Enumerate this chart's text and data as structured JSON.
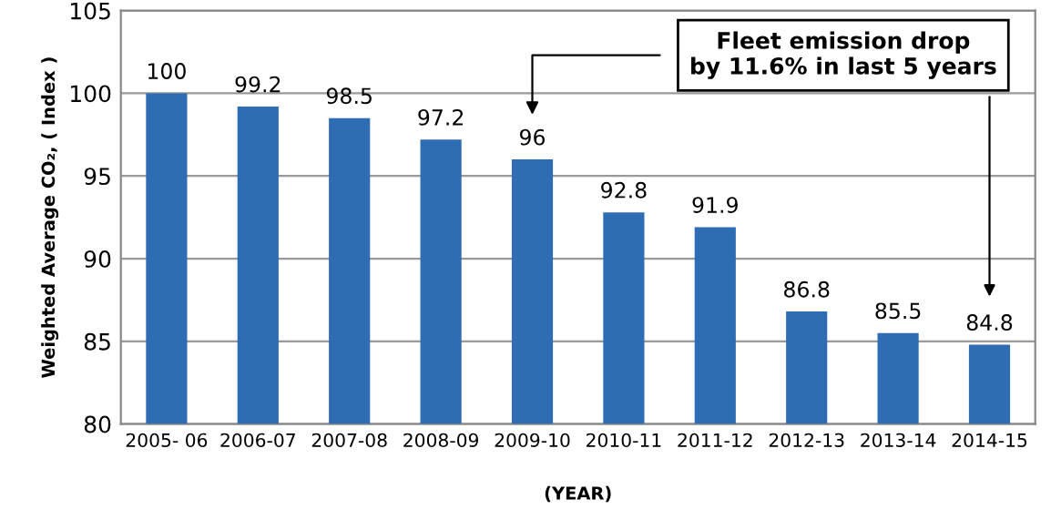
{
  "chart_data": {
    "type": "bar",
    "xlabel": "(YEAR)",
    "ylabel": "Weighted Average CO₂, ( Index )",
    "categories": [
      "2005- 06",
      "2006-07",
      "2007-08",
      "2008-09",
      "2009-10",
      "2010-11",
      "2011-12",
      "2012-13",
      "2013-14",
      "2014-15"
    ],
    "values": [
      100,
      99.2,
      98.5,
      97.2,
      96,
      92.8,
      91.9,
      86.8,
      85.5,
      84.8
    ],
    "color": "#2e6db4",
    "ylim": [
      80,
      105
    ],
    "yticks": [
      80,
      85,
      90,
      95,
      100,
      105
    ],
    "grid": "y",
    "data_labels": true,
    "annotations": [
      "Fleet emission drop\nby 11.6% in last 5 years"
    ]
  }
}
